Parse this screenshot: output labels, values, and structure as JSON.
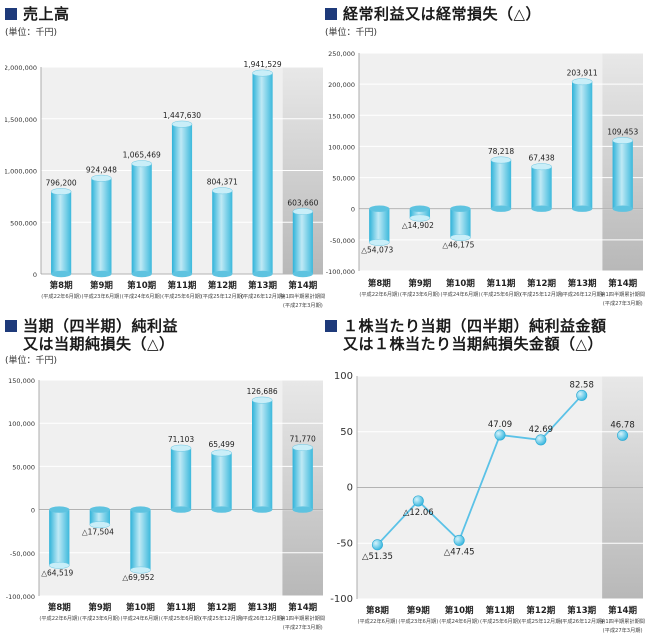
{
  "common": {
    "unit": "(単位：千円)",
    "categories": [
      "第8期",
      "第9期",
      "第10期",
      "第11期",
      "第12期",
      "第13期",
      "第14期"
    ],
    "subs": [
      [
        "(平成22年6月期)"
      ],
      [
        "(平成23年6月期)"
      ],
      [
        "(平成24年6月期)"
      ],
      [
        "(平成25年6月期)"
      ],
      [
        "(平成25年12月期)"
      ],
      [
        "(平成26年12月期)"
      ],
      [
        "第1四半期累計期間",
        "(平成27年3月期)"
      ]
    ]
  },
  "colors": {
    "title_square": "#1e3a7a",
    "plot_bg": "#f0f0f0",
    "highlight_bg": "#d0d0d0",
    "bar": "#5fc6e3",
    "line": "#5bc2e7"
  },
  "chart_data": [
    {
      "type": "bar",
      "title": "売上高",
      "title2": "",
      "ylim": [
        0,
        2000000
      ],
      "yticks": [
        0,
        500000,
        1000000,
        1500000,
        2000000
      ],
      "ytick_labels": [
        "0",
        "500,000",
        "1,000,000",
        "1,500,000",
        "2,000,000"
      ],
      "values": [
        796200,
        924948,
        1065469,
        1447630,
        804371,
        1941529,
        603660
      ],
      "value_labels": [
        "796,200",
        "924,948",
        "1,065,469",
        "1,447,630",
        "804,371",
        "1,941,529",
        "603,660"
      ],
      "grid": true
    },
    {
      "type": "bar",
      "title": "経常利益又は経常損失（△）",
      "title2": "",
      "ylim": [
        -100000,
        250000
      ],
      "yticks": [
        -100000,
        -50000,
        0,
        50000,
        100000,
        150000,
        200000,
        250000
      ],
      "ytick_labels": [
        "-100,000",
        "-50,000",
        "0",
        "50,000",
        "100,000",
        "150,000",
        "200,000",
        "250,000"
      ],
      "values": [
        -54073,
        -14902,
        -46175,
        78218,
        67438,
        203911,
        109453
      ],
      "value_labels": [
        "△54,073",
        "△14,902",
        "△46,175",
        "78,218",
        "67,438",
        "203,911",
        "109,453"
      ],
      "grid": true
    },
    {
      "type": "bar",
      "title": "当期（四半期）純利益",
      "title2": "又は当期純損失（△）",
      "ylim": [
        -100000,
        150000
      ],
      "yticks": [
        -100000,
        -50000,
        0,
        50000,
        100000,
        150000
      ],
      "ytick_labels": [
        "-100,000",
        "-50,000",
        "0",
        "50,000",
        "100,000",
        "150,000"
      ],
      "values": [
        -64519,
        -17504,
        -69952,
        71103,
        65499,
        126686,
        71770
      ],
      "value_labels": [
        "△64,519",
        "△17,504",
        "△69,952",
        "71,103",
        "65,499",
        "126,686",
        "71,770"
      ],
      "grid": true
    },
    {
      "type": "line",
      "title": "１株当たり当期（四半期）純利益金額",
      "title2": "又は１株当たり当期純損失金額（△）",
      "ylim": [
        -100,
        100
      ],
      "yticks": [
        -100,
        -50,
        0,
        50,
        100
      ],
      "ytick_labels": [
        "-100",
        "-50",
        "0",
        "50",
        "100"
      ],
      "values": [
        -51.35,
        -12.06,
        -47.45,
        47.09,
        42.69,
        82.58,
        46.78
      ],
      "value_labels": [
        "△51.35",
        "△12.06",
        "△47.45",
        "47.09",
        "42.69",
        "82.58",
        "46.78"
      ],
      "connect_last": false,
      "grid": true
    }
  ]
}
